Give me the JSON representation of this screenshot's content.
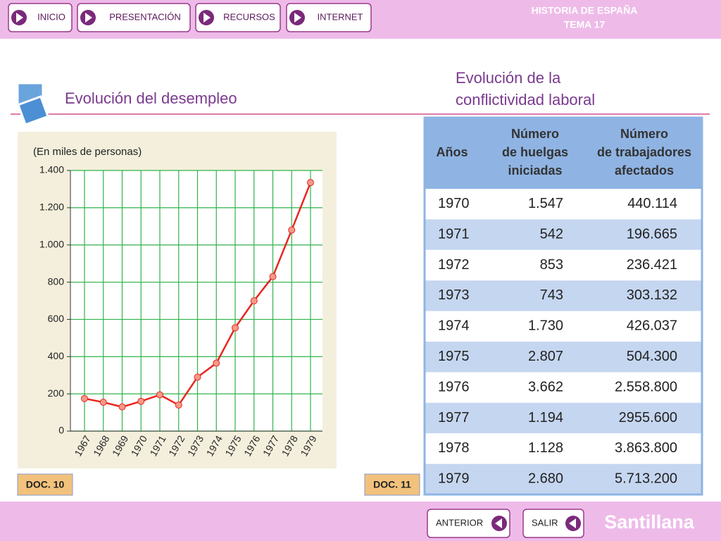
{
  "nav": {
    "buttons": [
      "INICIO",
      "PRESENTACIÓN",
      "RECURSOS",
      "INTERNET"
    ]
  },
  "header": {
    "title": "HISTORIA DE ESPAÑA",
    "subtitle": "TEMA 17"
  },
  "chart_data": {
    "type": "line",
    "title": "Evolución del desempleo",
    "subtitle": "(En miles de personas)",
    "categories": [
      "1967",
      "1968",
      "1969",
      "1970",
      "1971",
      "1972",
      "1973",
      "1974",
      "1975",
      "1976",
      "1977",
      "1978",
      "1979"
    ],
    "values": [
      175,
      155,
      130,
      160,
      195,
      140,
      290,
      365,
      555,
      700,
      830,
      1080,
      1335
    ],
    "color": "#e8261f",
    "ylim": [
      0,
      1400
    ],
    "yticks": [
      0,
      200,
      400,
      600,
      800,
      {
        "value": 1000,
        "label": "1.000"
      },
      {
        "value": 1200,
        "label": "1.200"
      },
      {
        "value": 1400,
        "label": "1.400"
      }
    ],
    "grid": true,
    "doc_label": "DOC. 10"
  },
  "table": {
    "title": "Evolución de la conflictividad laboral",
    "header": [
      "Años",
      "Número de huelgas iniciadas",
      "Número de trabajadores afectados"
    ],
    "rows": [
      [
        "1970",
        "1.547",
        "440.114"
      ],
      [
        "1971",
        "542",
        "196.665"
      ],
      [
        "1972",
        "853",
        "236.421"
      ],
      [
        "1973",
        "743",
        "303.132"
      ],
      [
        "1974",
        "1.730",
        "426.037"
      ],
      [
        "1975",
        "2.807",
        "504.300"
      ],
      [
        "1976",
        "3.662",
        "2.558.800"
      ],
      [
        "1977",
        "1.194",
        "2955.600"
      ],
      [
        "1978",
        "1.128",
        "3.863.800"
      ],
      [
        "1979",
        "2.680",
        "5.713.200"
      ]
    ],
    "doc_label": "DOC. 11"
  },
  "footer": {
    "buttons": [
      "ANTERIOR",
      "SALIR"
    ],
    "brand": "Santillana"
  }
}
